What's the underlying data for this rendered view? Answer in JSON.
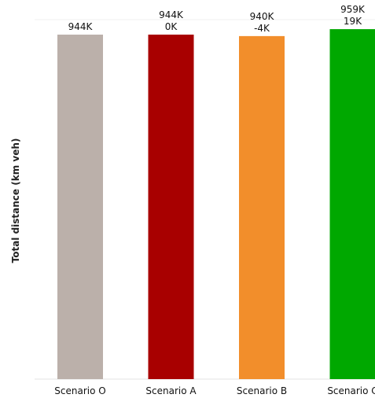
{
  "chart_data": {
    "type": "bar",
    "title": "",
    "ylabel": "Total distance (km veh)",
    "xlabel": "",
    "categories": [
      "Scenario O",
      "Scenario A",
      "Scenario B",
      "Scenario C"
    ],
    "values": [
      944,
      944,
      940,
      959
    ],
    "value_unit": "K",
    "value_labels": [
      "944K",
      "944K",
      "940K",
      "959K"
    ],
    "delta_labels": [
      "",
      "0K",
      "-4K",
      "19K"
    ],
    "colors": [
      "#bbb0aa",
      "#a80000",
      "#f28e2b",
      "#00a800"
    ],
    "ylim": [
      0,
      985
    ],
    "grid": false,
    "legend": "none"
  }
}
